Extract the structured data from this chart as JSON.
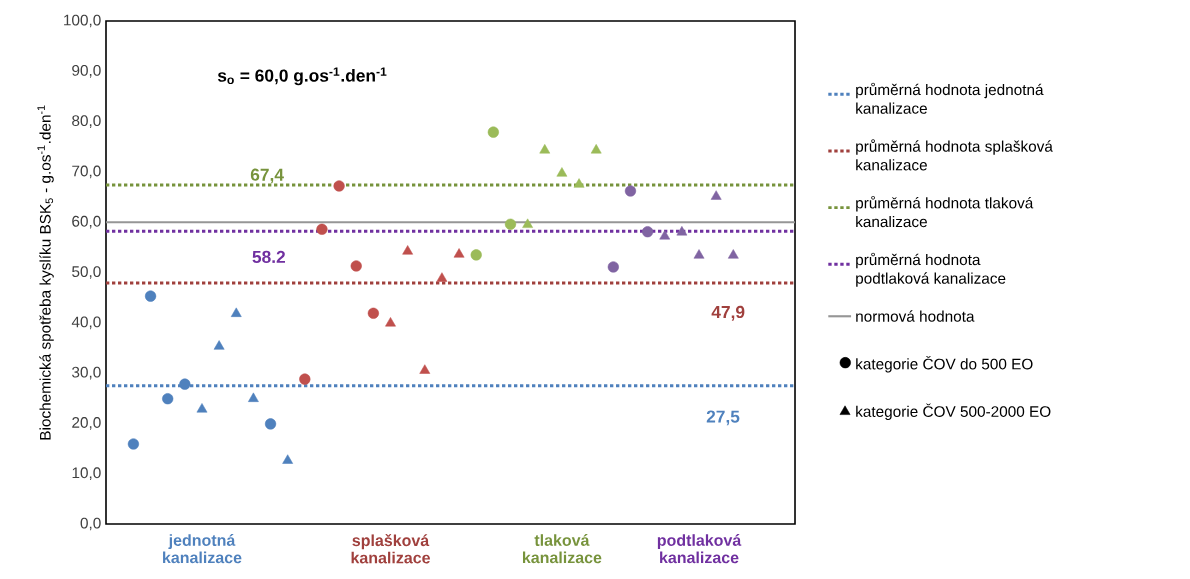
{
  "chart_data": {
    "type": "scatter",
    "ylabel": "Biochemická spotřeba kyslíku BSK$_{5}$ - g.os$^{-1}$.den$^{-1}$",
    "categories": [
      null,
      null,
      null,
      null,
      "jednotná kanalizace",
      null,
      null,
      null,
      null,
      null,
      null,
      null,
      null,
      null,
      null,
      "splašková kanalizace",
      null,
      null,
      null,
      null,
      null,
      null,
      null,
      null,
      null,
      "tlaková kanalizace",
      null,
      null,
      null,
      null,
      null,
      null,
      null,
      "podtlaková kanalizace",
      null,
      null
    ],
    "ylim": [
      0,
      100
    ],
    "yticks": [
      {
        "value": 0,
        "label": "0,0"
      },
      {
        "value": 10,
        "label": "10,0"
      },
      {
        "value": 20,
        "label": "20,0"
      },
      {
        "value": 30,
        "label": "30,0"
      },
      {
        "value": 40,
        "label": "40,0"
      },
      {
        "value": 50,
        "label": "50,0"
      },
      {
        "value": 60,
        "label": "60,0"
      },
      {
        "value": 70,
        "label": "70,0"
      },
      {
        "value": 80,
        "label": "80,0"
      },
      {
        "value": 90,
        "label": "90,0"
      },
      {
        "value": 100,
        "label": "100,0"
      }
    ],
    "series": [
      {
        "name": "kategorie ČOV do 500 EO",
        "marker": "circle",
        "color": "#000000",
        "values": [
          15.9,
          45.3,
          24.9,
          27.8,
          null,
          null,
          null,
          null,
          19.9,
          null,
          28.8,
          58.6,
          67.2,
          51.3,
          41.9,
          null,
          null,
          null,
          null,
          null,
          53.5,
          77.9,
          59.6,
          null,
          null,
          null,
          null,
          null,
          51.1,
          66.2,
          58.1,
          null,
          null,
          null,
          null,
          null
        ],
        "colors": [
          "#4f81bd",
          "#4f81bd",
          "#4f81bd",
          "#4f81bd",
          null,
          null,
          null,
          null,
          "#4f81bd",
          null,
          "#c0504d",
          "#c0504d",
          "#c0504d",
          "#c0504d",
          "#c0504d",
          null,
          null,
          null,
          null,
          null,
          "#9bbb59",
          "#9bbb59",
          "#9bbb59",
          null,
          null,
          null,
          null,
          null,
          "#8064a2",
          "#8064a2",
          "#8064a2",
          null,
          null,
          null,
          null,
          null
        ]
      },
      {
        "name": "kategorie ČOV 500-2000 EO",
        "marker": "triangle",
        "color": "#000000",
        "values": [
          null,
          null,
          null,
          null,
          23.1,
          35.6,
          42.1,
          25.2,
          null,
          12.9,
          null,
          null,
          null,
          null,
          null,
          40.2,
          54.5,
          30.8,
          49.1,
          53.9,
          null,
          null,
          null,
          59.8,
          74.6,
          70.0,
          67.8,
          74.6,
          null,
          null,
          null,
          57.5,
          58.3,
          53.7,
          65.4,
          53.7
        ],
        "colors": [
          null,
          null,
          null,
          null,
          "#4f81bd",
          "#4f81bd",
          "#4f81bd",
          "#4f81bd",
          null,
          "#4f81bd",
          null,
          null,
          null,
          null,
          null,
          "#c0504d",
          "#c0504d",
          "#c0504d",
          "#c0504d",
          "#c0504d",
          null,
          null,
          null,
          "#9bbb59",
          "#9bbb59",
          "#9bbb59",
          "#9bbb59",
          "#9bbb59",
          null,
          null,
          null,
          "#8064a2",
          "#8064a2",
          "#8064a2",
          "#8064a2",
          "#8064a2"
        ]
      }
    ],
    "ref_lines": [
      {
        "axis": "y",
        "value": 27.5,
        "label": "průměrná hodnota jednotná kanalizace",
        "color": "#4f81bd",
        "line_style": "dotted"
      },
      {
        "axis": "y",
        "value": 47.9,
        "label": "průměrná hodnota splašková kanalizace",
        "color": "#a0403d",
        "line_style": "dotted"
      },
      {
        "axis": "y",
        "value": 67.4,
        "label": "průměrná hodnota tlaková kanalizace",
        "color": "#77933c",
        "line_style": "dotted"
      },
      {
        "axis": "y",
        "value": 58.2,
        "label": "průměrná hodnota podtlaková kanalizace",
        "color": "#7030a0",
        "line_style": "dotted"
      },
      {
        "axis": "y",
        "value": 60,
        "label": "normová hodnota",
        "color": "#969696",
        "line_style": "solid"
      }
    ],
    "annotations": [
      "27,5",
      "47,9",
      "67,4",
      "58.2",
      "s$_{o}$ = 60,0 g.os$^{-1}$.den$^{-1}$"
    ],
    "legend": "right",
    "grid": false
  }
}
